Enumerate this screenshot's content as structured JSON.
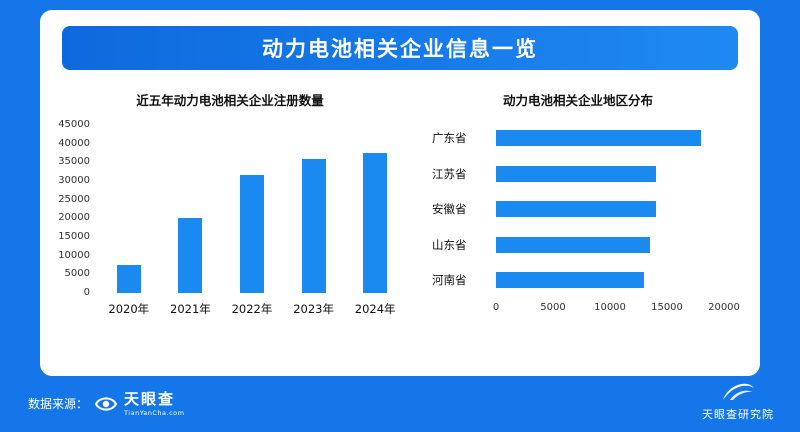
{
  "colors": {
    "background": "#1576e9",
    "card": "#ffffff",
    "header_dark": "#0e69dd",
    "header_light": "#1f89f2",
    "bar": "#1b8af0"
  },
  "header": {
    "title": "动力电池相关企业信息一览"
  },
  "chart_data": [
    {
      "type": "bar",
      "orientation": "vertical",
      "title": "近五年动力电池相关企业注册数量",
      "categories": [
        "2020年",
        "2021年",
        "2022年",
        "2023年",
        "2024年"
      ],
      "values": [
        7500,
        20000,
        31500,
        36000,
        37500
      ],
      "ylim": [
        0,
        45000
      ],
      "yticks": [
        0,
        5000,
        10000,
        15000,
        20000,
        25000,
        30000,
        35000,
        40000,
        45000
      ],
      "grid": false,
      "legend": null
    },
    {
      "type": "bar",
      "orientation": "horizontal",
      "title": "动力电池相关企业地区分布",
      "categories": [
        "广东省",
        "江苏省",
        "安徽省",
        "山东省",
        "河南省"
      ],
      "values": [
        18000,
        14000,
        14000,
        13500,
        13000
      ],
      "xlim": [
        0,
        20000
      ],
      "xticks": [
        0,
        5000,
        10000,
        15000,
        20000
      ],
      "grid": false,
      "legend": null
    }
  ],
  "footer": {
    "source_label": "数据来源：",
    "tianyancha_logo": {
      "name": "天眼查",
      "subtext": "TianYanCha.com"
    },
    "research_logo": {
      "name": "天眼查研究院"
    }
  }
}
